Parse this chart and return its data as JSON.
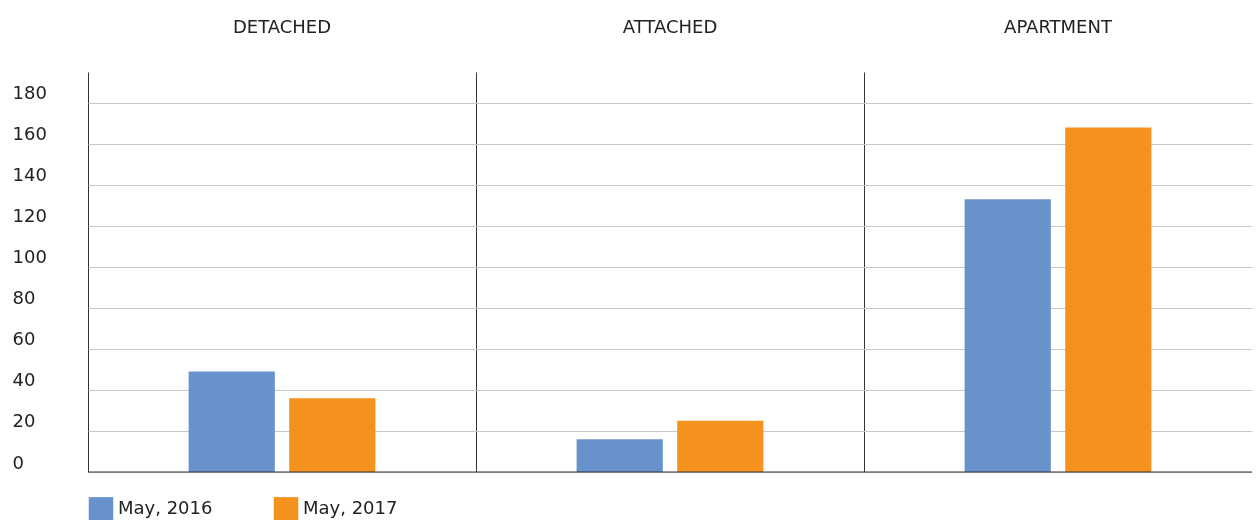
{
  "chart_data": {
    "type": "bar",
    "categories": [
      "DETACHED",
      "ATTACHED",
      "APARTMENT"
    ],
    "series": [
      {
        "name": "May, 2016",
        "color": "#6892cc",
        "values": [
          49,
          16,
          133
        ]
      },
      {
        "name": "May, 2017",
        "color": "#f5921e",
        "values": [
          36,
          25,
          168
        ]
      }
    ],
    "ylim": [
      0,
      195
    ],
    "yticks": [
      0,
      20,
      40,
      60,
      80,
      100,
      120,
      140,
      160,
      180
    ],
    "grid": "y",
    "legend": "bottom left"
  }
}
